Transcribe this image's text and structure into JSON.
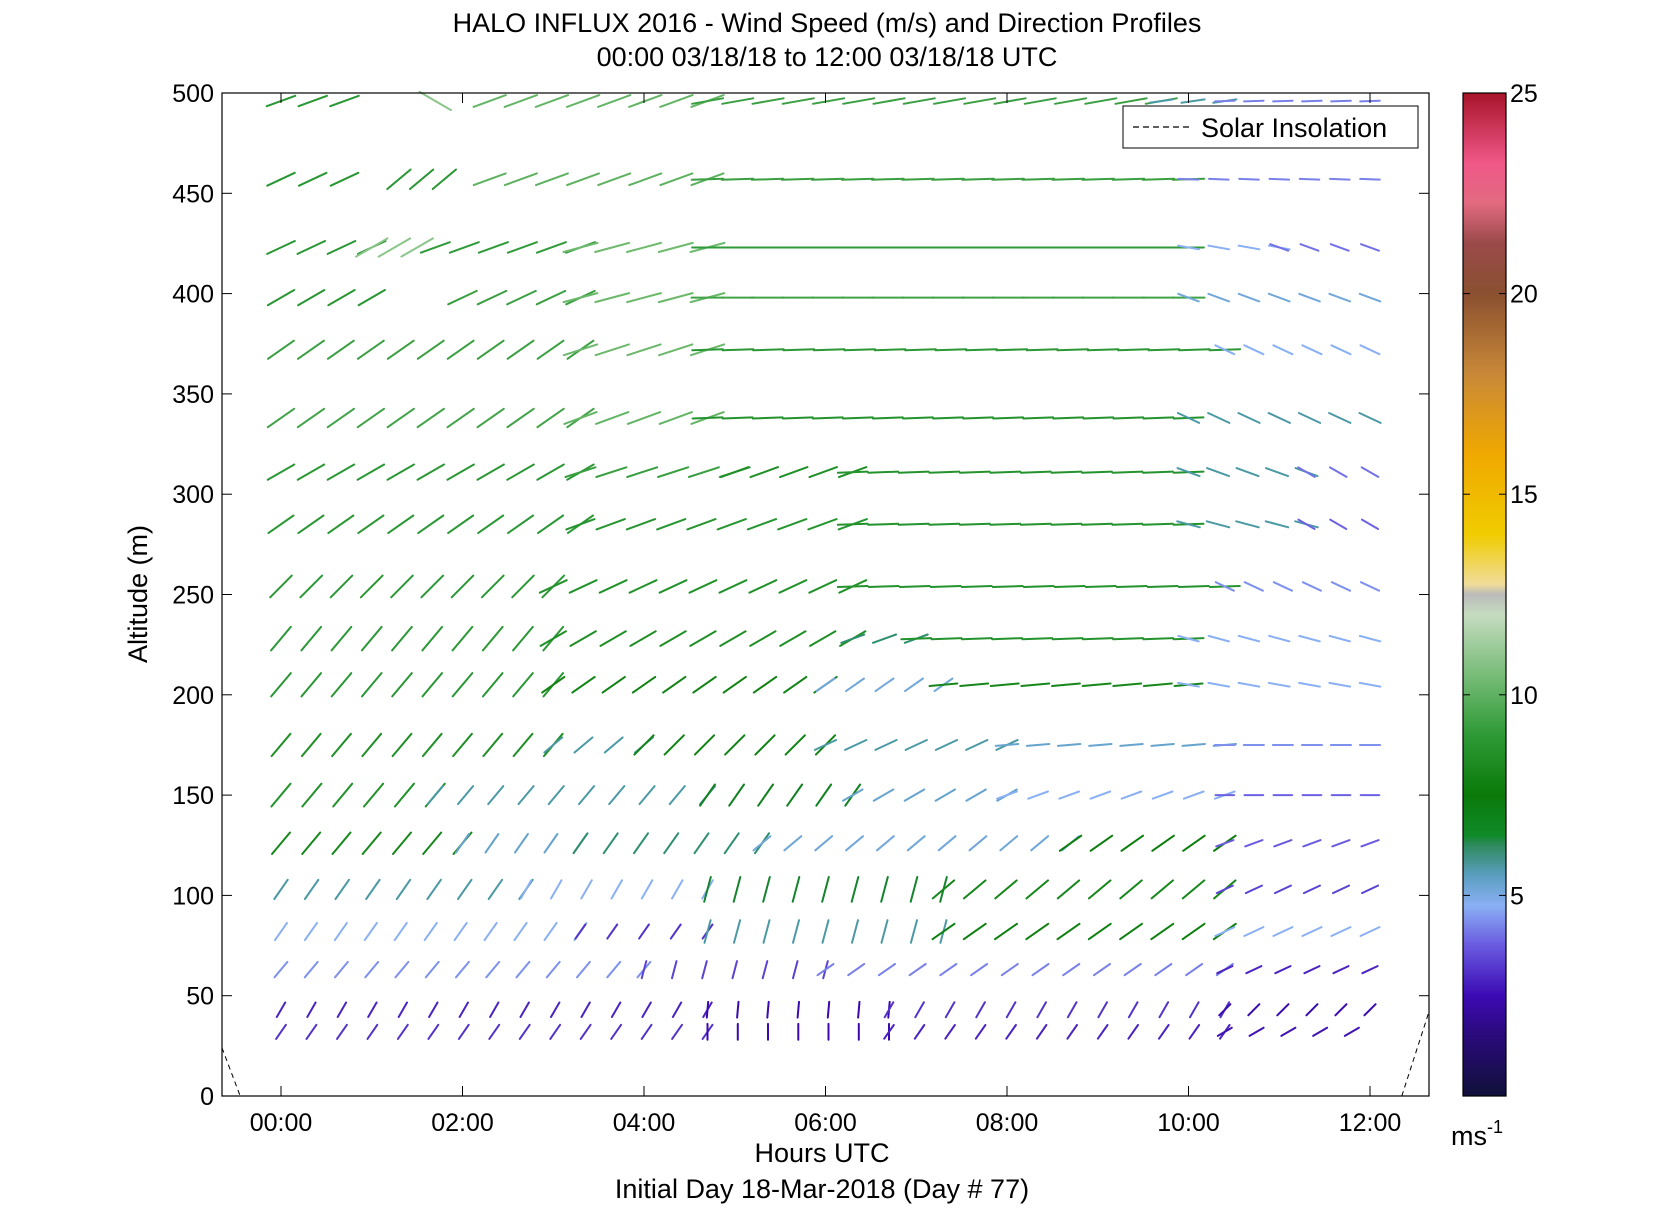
{
  "chart_data": {
    "type": "wind-barb-profile",
    "title": "HALO INFLUX 2016 - Wind Speed (m/s) and Direction Profiles",
    "subtitle": "00:00 03/18/18 to 12:00 03/18/18  UTC",
    "xlabel": "Hours UTC",
    "xlabel2": "Initial Day 18-Mar-2018 (Day # 77)",
    "ylabel": "Altitude (m)",
    "xlim_hours": [
      -0.65,
      12.65
    ],
    "ylim": [
      0,
      500
    ],
    "xticks": [
      {
        "value": 0,
        "label": "00:00"
      },
      {
        "value": 2,
        "label": "02:00"
      },
      {
        "value": 4,
        "label": "04:00"
      },
      {
        "value": 6,
        "label": "06:00"
      },
      {
        "value": 8,
        "label": "08:00"
      },
      {
        "value": 10,
        "label": "10:00"
      },
      {
        "value": 12,
        "label": "12:00"
      }
    ],
    "yticks": [
      {
        "value": 0,
        "label": "0"
      },
      {
        "value": 50,
        "label": "50"
      },
      {
        "value": 100,
        "label": "100"
      },
      {
        "value": 150,
        "label": "150"
      },
      {
        "value": 200,
        "label": "200"
      },
      {
        "value": 250,
        "label": "250"
      },
      {
        "value": 300,
        "label": "300"
      },
      {
        "value": 350,
        "label": "350"
      },
      {
        "value": 400,
        "label": "400"
      },
      {
        "value": 450,
        "label": "450"
      },
      {
        "value": 500,
        "label": "500"
      }
    ],
    "legend": {
      "entries": [
        "Solar Insolation"
      ],
      "placement": "top-right"
    },
    "colorbar": {
      "range": [
        0,
        25
      ],
      "unit": "ms",
      "unit_exponent": "-1",
      "ticks": [
        {
          "value": 5,
          "label": "5"
        },
        {
          "value": 10,
          "label": "10"
        },
        {
          "value": 15,
          "label": "15"
        },
        {
          "value": 20,
          "label": "20"
        },
        {
          "value": 25,
          "label": "25"
        }
      ]
    },
    "grid": false,
    "time_step_hours": 0.333,
    "altitudes": [
      32,
      43,
      63,
      82,
      103,
      126,
      150,
      175,
      205,
      228,
      254,
      285,
      311,
      338,
      372,
      398,
      423,
      457,
      496
    ],
    "profiles": [
      {
        "altitude": 32,
        "segments": [
          {
            "t0": 0.0,
            "t1": 4.7,
            "speed": 3.0,
            "dir": 215
          },
          {
            "t0": 4.7,
            "t1": 6.7,
            "speed": 2.4,
            "dir": 180
          },
          {
            "t0": 6.7,
            "t1": 10.4,
            "speed": 2.8,
            "dir": 215
          },
          {
            "t0": 10.4,
            "t1": 11.8,
            "speed": 2.6,
            "dir": 240
          }
        ]
      },
      {
        "altitude": 43,
        "segments": [
          {
            "t0": 0.0,
            "t1": 4.7,
            "speed": 2.8,
            "dir": 210
          },
          {
            "t0": 4.7,
            "t1": 6.7,
            "speed": 2.4,
            "dir": 185
          },
          {
            "t0": 6.7,
            "t1": 10.4,
            "speed": 3.0,
            "dir": 210
          },
          {
            "t0": 10.4,
            "t1": 12.0,
            "speed": 2.4,
            "dir": 225
          }
        ]
      },
      {
        "altitude": 63,
        "segments": [
          {
            "t0": 0.0,
            "t1": 4.0,
            "speed": 4.2,
            "dir": 220
          },
          {
            "t0": 4.0,
            "t1": 6.0,
            "speed": 3.2,
            "dir": 195
          },
          {
            "t0": 6.0,
            "t1": 10.4,
            "speed": 4.0,
            "dir": 235
          },
          {
            "t0": 10.4,
            "t1": 12.0,
            "speed": 2.8,
            "dir": 245
          }
        ]
      },
      {
        "altitude": 82,
        "segments": [
          {
            "t0": 0.0,
            "t1": 3.3,
            "speed": 4.6,
            "dir": 215
          },
          {
            "t0": 3.3,
            "t1": 4.7,
            "speed": 3.0,
            "dir": 215
          },
          {
            "t0": 4.7,
            "t1": 7.3,
            "speed": 5.6,
            "dir": 195
          },
          {
            "t0": 7.3,
            "t1": 10.4,
            "speed": 7.0,
            "dir": 235
          },
          {
            "t0": 10.4,
            "t1": 12.0,
            "speed": 4.6,
            "dir": 245
          }
        ]
      },
      {
        "altitude": 103,
        "segments": [
          {
            "t0": 0.0,
            "t1": 2.7,
            "speed": 5.6,
            "dir": 215
          },
          {
            "t0": 2.7,
            "t1": 4.7,
            "speed": 4.6,
            "dir": 210
          },
          {
            "t0": 4.7,
            "t1": 7.3,
            "speed": 6.5,
            "dir": 195
          },
          {
            "t0": 7.3,
            "t1": 10.4,
            "speed": 7.5,
            "dir": 230
          },
          {
            "t0": 10.4,
            "t1": 12.0,
            "speed": 3.2,
            "dir": 245
          }
        ]
      },
      {
        "altitude": 126,
        "segments": [
          {
            "t0": 0.0,
            "t1": 2.0,
            "speed": 7.5,
            "dir": 220
          },
          {
            "t0": 2.0,
            "t1": 3.3,
            "speed": 5.2,
            "dir": 215
          },
          {
            "t0": 3.3,
            "t1": 5.3,
            "speed": 6.0,
            "dir": 215
          },
          {
            "t0": 5.3,
            "t1": 8.7,
            "speed": 5.0,
            "dir": 230
          },
          {
            "t0": 8.7,
            "t1": 10.4,
            "speed": 6.8,
            "dir": 235
          },
          {
            "t0": 10.4,
            "t1": 12.0,
            "speed": 3.5,
            "dir": 250
          }
        ]
      },
      {
        "altitude": 150,
        "segments": [
          {
            "t0": 0.0,
            "t1": 1.7,
            "speed": 8.2,
            "dir": 220
          },
          {
            "t0": 1.7,
            "t1": 4.7,
            "speed": 5.6,
            "dir": 220
          },
          {
            "t0": 4.7,
            "t1": 6.3,
            "speed": 6.6,
            "dir": 215
          },
          {
            "t0": 6.3,
            "t1": 8.0,
            "speed": 5.2,
            "dir": 240
          },
          {
            "t0": 8.0,
            "t1": 10.4,
            "speed": 4.6,
            "dir": 250
          },
          {
            "t0": 10.4,
            "t1": 12.0,
            "speed": 3.6,
            "dir": 270
          }
        ]
      },
      {
        "altitude": 175,
        "segments": [
          {
            "t0": 0.0,
            "t1": 3.0,
            "speed": 8.0,
            "dir": 220
          },
          {
            "t0": 3.0,
            "t1": 4.0,
            "speed": 5.6,
            "dir": 230
          },
          {
            "t0": 4.0,
            "t1": 6.0,
            "speed": 7.2,
            "dir": 225
          },
          {
            "t0": 6.0,
            "t1": 8.0,
            "speed": 5.6,
            "dir": 245
          },
          {
            "t0": 8.0,
            "t1": 10.4,
            "speed": 5.2,
            "dir": 265
          },
          {
            "t0": 10.4,
            "t1": 12.0,
            "speed": 4.2,
            "dir": 270
          }
        ]
      },
      {
        "altitude": 205,
        "segments": [
          {
            "t0": 0.0,
            "t1": 3.0,
            "speed": 8.5,
            "dir": 220
          },
          {
            "t0": 3.0,
            "t1": 6.0,
            "speed": 7.2,
            "dir": 235
          },
          {
            "t0": 6.0,
            "t1": 7.3,
            "speed": 5.0,
            "dir": 235
          },
          {
            "t0": 7.3,
            "t1": 10.0,
            "speed": 7.5,
            "dir": 265
          },
          {
            "t0": 10.0,
            "t1": 12.0,
            "speed": 4.6,
            "dir": 280
          }
        ]
      },
      {
        "altitude": 228,
        "segments": [
          {
            "t0": 0.0,
            "t1": 3.0,
            "speed": 8.6,
            "dir": 220
          },
          {
            "t0": 3.0,
            "t1": 6.3,
            "speed": 8.0,
            "dir": 240
          },
          {
            "t0": 6.3,
            "t1": 7.0,
            "speed": 6.0,
            "dir": 250
          },
          {
            "t0": 7.0,
            "t1": 10.0,
            "speed": 8.3,
            "dir": 268
          },
          {
            "t0": 10.0,
            "t1": 12.0,
            "speed": 4.6,
            "dir": 285
          }
        ]
      },
      {
        "altitude": 254,
        "segments": [
          {
            "t0": 0.0,
            "t1": 3.0,
            "speed": 8.6,
            "dir": 225
          },
          {
            "t0": 3.0,
            "t1": 6.3,
            "speed": 8.2,
            "dir": 245
          },
          {
            "t0": 6.3,
            "t1": 10.4,
            "speed": 8.3,
            "dir": 268
          },
          {
            "t0": 10.4,
            "t1": 12.0,
            "speed": 4.2,
            "dir": 295
          }
        ]
      },
      {
        "altitude": 285,
        "segments": [
          {
            "t0": 0.0,
            "t1": 3.3,
            "speed": 8.6,
            "dir": 235
          },
          {
            "t0": 3.3,
            "t1": 6.3,
            "speed": 8.4,
            "dir": 250
          },
          {
            "t0": 6.3,
            "t1": 10.0,
            "speed": 8.3,
            "dir": 268
          },
          {
            "t0": 10.0,
            "t1": 11.3,
            "speed": 5.6,
            "dir": 285
          },
          {
            "t0": 11.3,
            "t1": 12.0,
            "speed": 3.6,
            "dir": 300
          }
        ]
      },
      {
        "altitude": 311,
        "segments": [
          {
            "t0": 0.0,
            "t1": 3.3,
            "speed": 8.6,
            "dir": 240
          },
          {
            "t0": 3.3,
            "t1": 5.0,
            "speed": 9.0,
            "dir": 252
          },
          {
            "t0": 5.0,
            "t1": 6.3,
            "speed": 8.0,
            "dir": 250
          },
          {
            "t0": 6.3,
            "t1": 10.0,
            "speed": 8.3,
            "dir": 268
          },
          {
            "t0": 10.0,
            "t1": 11.3,
            "speed": 5.6,
            "dir": 290
          },
          {
            "t0": 11.3,
            "t1": 12.0,
            "speed": 3.8,
            "dir": 300
          }
        ]
      },
      {
        "altitude": 338,
        "segments": [
          {
            "t0": 0.0,
            "t1": 3.3,
            "speed": 9.2,
            "dir": 235
          },
          {
            "t0": 3.3,
            "t1": 4.7,
            "speed": 10.2,
            "dir": 250
          },
          {
            "t0": 4.7,
            "t1": 10.0,
            "speed": 8.3,
            "dir": 268
          },
          {
            "t0": 10.0,
            "t1": 12.0,
            "speed": 5.6,
            "dir": 295
          }
        ]
      },
      {
        "altitude": 372,
        "segments": [
          {
            "t0": 0.0,
            "t1": 3.3,
            "speed": 9.0,
            "dir": 235
          },
          {
            "t0": 3.3,
            "t1": 4.7,
            "speed": 10.4,
            "dir": 252
          },
          {
            "t0": 4.7,
            "t1": 10.4,
            "speed": 8.6,
            "dir": 268
          },
          {
            "t0": 10.4,
            "t1": 12.0,
            "speed": 4.6,
            "dir": 295
          }
        ]
      },
      {
        "altitude": 398,
        "segments": [
          {
            "t0": 0.0,
            "t1": 1.0,
            "speed": 8.5,
            "dir": 240
          },
          {
            "t0": 2.0,
            "t1": 3.3,
            "speed": 9.0,
            "dir": 245
          },
          {
            "t0": 3.3,
            "t1": 4.7,
            "speed": 10.4,
            "dir": 255
          },
          {
            "t0": 4.7,
            "t1": 10.0,
            "speed": 9.2,
            "dir": 270
          },
          {
            "t0": 10.0,
            "t1": 12.0,
            "speed": 5.0,
            "dir": 290
          }
        ]
      },
      {
        "altitude": 423,
        "segments": [
          {
            "t0": 0.0,
            "t1": 1.0,
            "speed": 8.5,
            "dir": 245
          },
          {
            "t0": 1.0,
            "t1": 1.5,
            "speed": 11.0,
            "dir": 240
          },
          {
            "t0": 1.7,
            "t1": 3.3,
            "speed": 8.7,
            "dir": 250
          },
          {
            "t0": 3.3,
            "t1": 4.7,
            "speed": 10.5,
            "dir": 255
          },
          {
            "t0": 4.7,
            "t1": 10.0,
            "speed": 8.7,
            "dir": 270
          },
          {
            "t0": 10.0,
            "t1": 11.0,
            "speed": 4.6,
            "dir": 280
          },
          {
            "t0": 11.0,
            "t1": 12.0,
            "speed": 3.8,
            "dir": 290
          }
        ]
      },
      {
        "altitude": 457,
        "segments": [
          {
            "t0": 0.0,
            "t1": 0.7,
            "speed": 8.5,
            "dir": 245
          },
          {
            "t0": 1.3,
            "t1": 1.8,
            "speed": 8.5,
            "dir": 230
          },
          {
            "t0": 2.3,
            "t1": 4.7,
            "speed": 10.0,
            "dir": 250
          },
          {
            "t0": 4.7,
            "t1": 10.0,
            "speed": 9.0,
            "dir": 268
          },
          {
            "t0": 10.0,
            "t1": 12.0,
            "speed": 4.0,
            "dir": 272
          }
        ]
      },
      {
        "altitude": 496,
        "segments": [
          {
            "t0": 0.0,
            "t1": 0.7,
            "speed": 8.5,
            "dir": 250
          },
          {
            "t0": 1.7,
            "t1": 1.8,
            "speed": 11.0,
            "dir": 300
          },
          {
            "t0": 2.3,
            "t1": 4.7,
            "speed": 10.2,
            "dir": 250
          },
          {
            "t0": 4.7,
            "t1": 9.7,
            "speed": 9.0,
            "dir": 260
          },
          {
            "t0": 9.7,
            "t1": 10.4,
            "speed": 5.6,
            "dir": 262
          },
          {
            "t0": 10.4,
            "t1": 12.0,
            "speed": 4.0,
            "dir": 268
          }
        ]
      }
    ],
    "solar_insolation": [
      {
        "segment": [
          {
            "x": -0.65,
            "y": 24
          },
          {
            "x": -0.45,
            "y": 0
          }
        ]
      },
      {
        "segment": [
          {
            "x": 12.35,
            "y": 0
          },
          {
            "x": 12.65,
            "y": 42
          }
        ]
      }
    ]
  }
}
